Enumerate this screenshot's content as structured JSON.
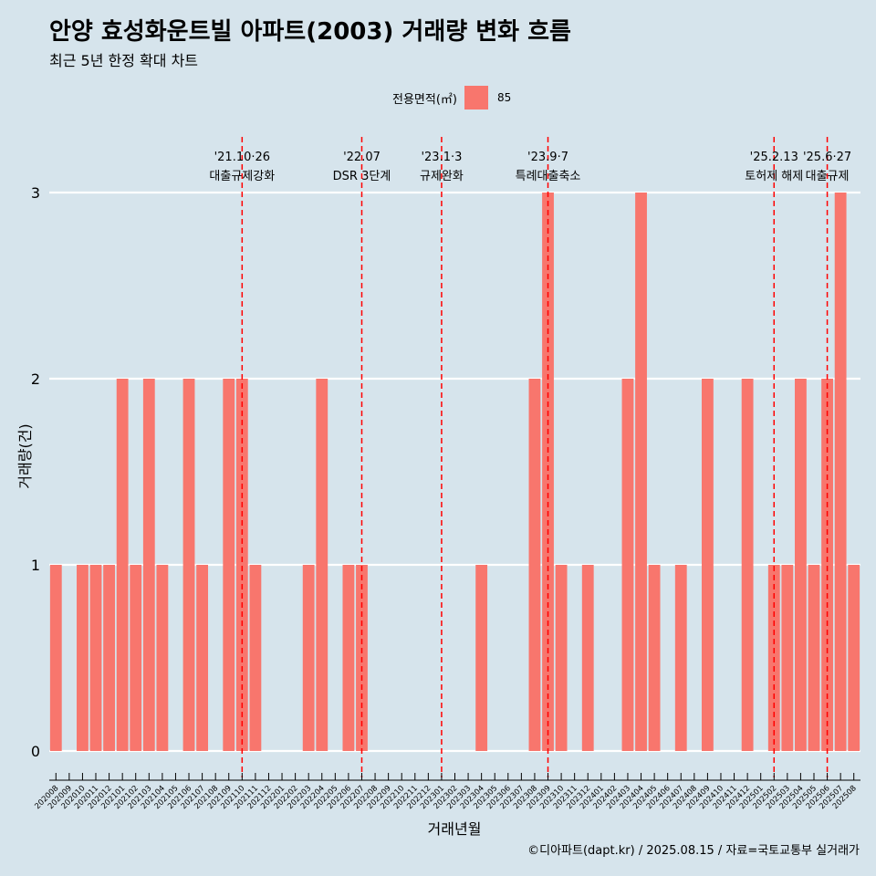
{
  "title": "안양 효성화운트빌 아파트(2003) 거래량 변화 흐름",
  "subtitle": "최근 5년 한정 확대 차트",
  "caption": "©디아파트(dapt.kr) / 2025.08.15 / 자료=국토교통부 실거래가",
  "legend": {
    "title": "전용면적(㎡)",
    "label": "85",
    "color": "#f8766d"
  },
  "colors": {
    "bar": "#f8766d",
    "background": "#d6e4ec",
    "grid": "#ffffff",
    "event_line": "#ff0000"
  },
  "chart_data": {
    "type": "bar",
    "xlabel": "거래년월",
    "ylabel": "거래량(건)",
    "ylim": [
      0,
      3
    ],
    "yticks": [
      0,
      1,
      2,
      3
    ],
    "grid": true,
    "legend_position": "top",
    "categories": [
      "202008",
      "202009",
      "202010",
      "202011",
      "202012",
      "202101",
      "202102",
      "202103",
      "202104",
      "202105",
      "202106",
      "202107",
      "202108",
      "202109",
      "202110",
      "202111",
      "202112",
      "202201",
      "202202",
      "202203",
      "202204",
      "202205",
      "202206",
      "202207",
      "202208",
      "202209",
      "202210",
      "202211",
      "202212",
      "202301",
      "202302",
      "202303",
      "202304",
      "202305",
      "202306",
      "202307",
      "202308",
      "202309",
      "202310",
      "202311",
      "202312",
      "202401",
      "202402",
      "202403",
      "202404",
      "202405",
      "202406",
      "202407",
      "202408",
      "202409",
      "202410",
      "202411",
      "202412",
      "202501",
      "202502",
      "202503",
      "202504",
      "202505",
      "202506",
      "202507",
      "202508"
    ],
    "series": [
      {
        "name": "85",
        "values": [
          1,
          0,
          1,
          1,
          1,
          2,
          1,
          2,
          1,
          0,
          2,
          1,
          0,
          2,
          2,
          1,
          0,
          0,
          0,
          1,
          2,
          0,
          1,
          1,
          0,
          0,
          0,
          0,
          0,
          0,
          0,
          0,
          1,
          0,
          0,
          0,
          2,
          3,
          1,
          0,
          1,
          0,
          0,
          2,
          3,
          1,
          0,
          1,
          0,
          2,
          0,
          0,
          2,
          0,
          1,
          1,
          2,
          1,
          2,
          3,
          1
        ]
      }
    ],
    "annotations": [
      {
        "date": "'21.10·26",
        "label": "대출규제강화",
        "at": "202110"
      },
      {
        "date": "'22.07",
        "label": "DSR 3단계",
        "at": "202207"
      },
      {
        "date": "'23.1·3",
        "label": "규제완화",
        "at": "202301"
      },
      {
        "date": "'23.9·7",
        "label": "특례대출축소",
        "at": "202309"
      },
      {
        "date": "'25.2.13",
        "label": "토허제 해제",
        "at": "202502"
      },
      {
        "date": "'25.6·27",
        "label": "대출규제",
        "at": "202506"
      }
    ]
  }
}
